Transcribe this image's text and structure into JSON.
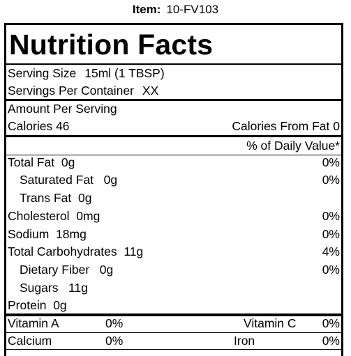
{
  "item": {
    "label": "Item:",
    "value": "10-FV103"
  },
  "title": "Nutrition Facts",
  "serving": {
    "size_label": "Serving Size",
    "size_value": "15ml (1 TBSP)",
    "per_container_label": "Servings Per Container",
    "per_container_value": "XX"
  },
  "amount_header": "Amount Per Serving",
  "calories": {
    "label": "Calories",
    "value": "46",
    "from_fat_label": "Calories From Fat",
    "from_fat_value": "0"
  },
  "dv_header": "% of Daily Value*",
  "nutrients": [
    {
      "label": "Total Fat",
      "amount": "0g",
      "dv": "0%"
    },
    {
      "label": "Saturated Fat",
      "amount": "0g",
      "dv": "0%"
    },
    {
      "label": "Trans Fat",
      "amount": "0g",
      "dv": ""
    },
    {
      "label": "Cholesterol",
      "amount": "0mg",
      "dv": "0%"
    },
    {
      "label": "Sodium",
      "amount": "18mg",
      "dv": "0%"
    },
    {
      "label": "Total Carbohydrates",
      "amount": "11g",
      "dv": "4%"
    },
    {
      "label": "Dietary Fiber",
      "amount": "0g",
      "dv": "0%"
    },
    {
      "label": "Sugars",
      "amount": "11g",
      "dv": ""
    },
    {
      "label": "Protein",
      "amount": "0g",
      "dv": ""
    }
  ],
  "vitamins": [
    {
      "label": "Vitamin A",
      "value": "0%",
      "label2": "Vitamin C",
      "value2": "0%"
    },
    {
      "label": "Calcium",
      "value": "0%",
      "label2": "Iron",
      "value2": "0%"
    }
  ]
}
